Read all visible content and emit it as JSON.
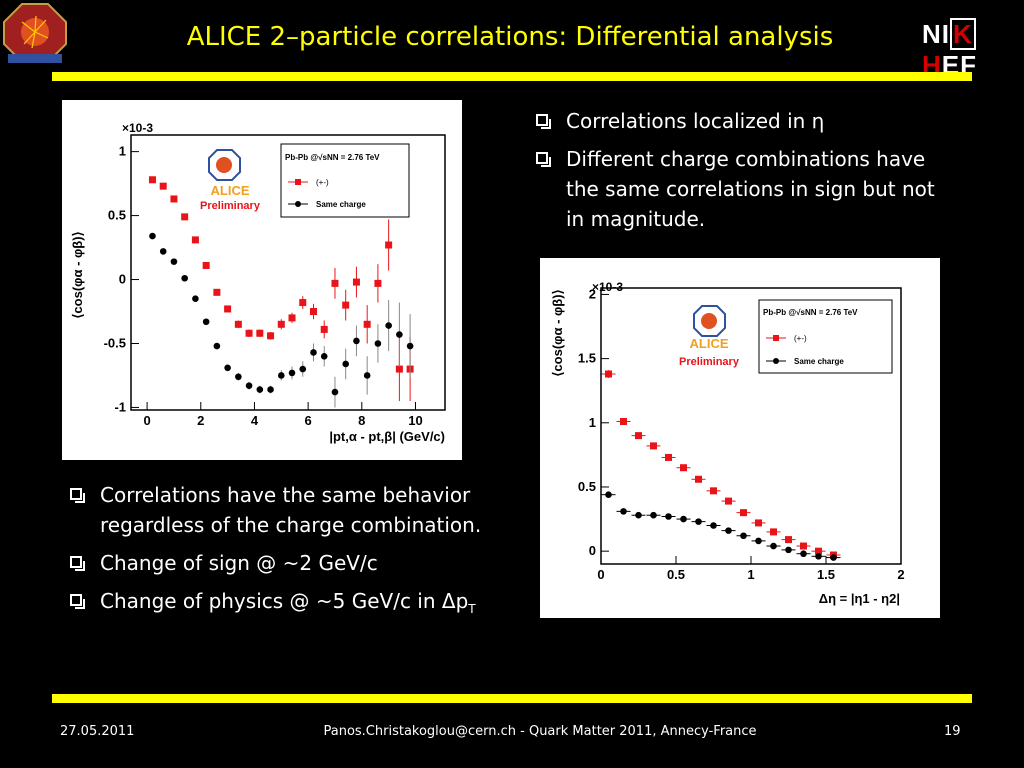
{
  "slide": {
    "title": "ALICE 2–particle correlations: Differential analysis",
    "logo_right": {
      "p1": "NI",
      "p2": "K",
      "p3": "H",
      "p4": "EF"
    }
  },
  "bullets_right": [
    "Correlations localized in η",
    "Different charge combinations have the same correlations in sign but not in magnitude."
  ],
  "bullets_left": [
    "Correlations have the same behavior regardless of the charge combination.",
    "Change of sign @ ~2 GeV/c"
  ],
  "bullet_last": {
    "text": "Change of physics @ ~5 GeV/c in Δp",
    "sub": "T"
  },
  "footer": {
    "date": "27.05.2011",
    "center": "Panos.Christakoglou@cern.ch - Quark Matter 2011, Annecy-France",
    "page": "19"
  },
  "chart_data": [
    {
      "type": "scatter",
      "ylabel": "⟨cos(φα - φβ)⟩",
      "xlabel": "|pt,α - pt,β| (GeV/c)",
      "exponent": "×10-3",
      "xlim": [
        -0.6,
        11.1
      ],
      "ylim": [
        -1.02,
        1.13
      ],
      "xticks": [
        0,
        2,
        4,
        6,
        8,
        10
      ],
      "yticks": [
        -1,
        -0.5,
        0,
        0.5,
        1
      ],
      "ytick_labels": [
        "-1",
        "-0.5",
        "0",
        "0.5",
        "1"
      ],
      "legend": {
        "system": "Pb-Pb @√sNN = 2.76 TeV",
        "preliminary": "Preliminary",
        "alice": "ALICE",
        "placement": "top-right"
      },
      "series": [
        {
          "name": "(+-)",
          "color": "#e8141a",
          "marker": "square",
          "x": [
            0.2,
            0.6,
            1.0,
            1.4,
            1.8,
            2.2,
            2.6,
            3.0,
            3.4,
            3.8,
            4.2,
            4.6,
            5.0,
            5.4,
            5.8,
            6.2,
            6.6,
            7.0,
            7.4,
            7.8,
            8.2,
            8.6,
            9.0,
            9.4,
            9.8
          ],
          "y": [
            0.78,
            0.73,
            0.63,
            0.49,
            0.31,
            0.11,
            -0.1,
            -0.23,
            -0.35,
            -0.42,
            -0.42,
            -0.44,
            -0.35,
            -0.3,
            -0.18,
            -0.25,
            -0.39,
            -0.03,
            -0.2,
            -0.02,
            -0.35,
            -0.03,
            0.27,
            -0.7,
            -0.7
          ],
          "err": [
            0.02,
            0.02,
            0.02,
            0.02,
            0.02,
            0.02,
            0.02,
            0.02,
            0.03,
            0.03,
            0.03,
            0.03,
            0.04,
            0.04,
            0.05,
            0.06,
            0.07,
            0.12,
            0.12,
            0.12,
            0.15,
            0.15,
            0.2,
            0.25,
            0.25
          ]
        },
        {
          "name": "Same charge",
          "color": "#000000",
          "marker": "circle",
          "x": [
            0.2,
            0.6,
            1.0,
            1.4,
            1.8,
            2.2,
            2.6,
            3.0,
            3.4,
            3.8,
            4.2,
            4.6,
            5.0,
            5.4,
            5.8,
            6.2,
            6.6,
            7.0,
            7.4,
            7.8,
            8.2,
            8.6,
            9.0,
            9.4,
            9.8
          ],
          "y": [
            0.34,
            0.22,
            0.14,
            0.01,
            -0.15,
            -0.33,
            -0.52,
            -0.69,
            -0.76,
            -0.83,
            -0.86,
            -0.86,
            -0.75,
            -0.73,
            -0.7,
            -0.57,
            -0.6,
            -0.88,
            -0.66,
            -0.48,
            -0.75,
            -0.5,
            -0.36,
            -0.43,
            -0.52
          ],
          "err": [
            0.02,
            0.02,
            0.02,
            0.02,
            0.02,
            0.02,
            0.02,
            0.02,
            0.03,
            0.03,
            0.03,
            0.03,
            0.04,
            0.05,
            0.06,
            0.07,
            0.08,
            0.12,
            0.12,
            0.12,
            0.15,
            0.15,
            0.2,
            0.25,
            0.25
          ]
        }
      ]
    },
    {
      "type": "scatter",
      "ylabel": "⟨cos(φα - φβ)⟩",
      "xlabel": "Δη = |η1 - η2|",
      "exponent": "×10-3",
      "xlim": [
        0,
        2.0
      ],
      "ylim": [
        -0.1,
        2.05
      ],
      "xticks": [
        0,
        0.5,
        1,
        1.5,
        2
      ],
      "xtick_labels": [
        "0",
        "0.5",
        "1",
        "1.5",
        "2"
      ],
      "yticks": [
        0,
        0.5,
        1,
        1.5,
        2
      ],
      "ytick_labels": [
        "0",
        "0.5",
        "1",
        "1.5",
        "2"
      ],
      "legend": {
        "system": "Pb-Pb @√sNN = 2.76 TeV",
        "preliminary": "Preliminary",
        "alice": "ALICE",
        "placement": "top-right"
      },
      "series": [
        {
          "name": "(+-)",
          "color": "#e8141a",
          "marker": "square",
          "x": [
            0.05,
            0.15,
            0.25,
            0.35,
            0.45,
            0.55,
            0.65,
            0.75,
            0.85,
            0.95,
            1.05,
            1.15,
            1.25,
            1.35,
            1.45,
            1.55
          ],
          "y": [
            1.38,
            1.01,
            0.9,
            0.82,
            0.73,
            0.65,
            0.56,
            0.47,
            0.39,
            0.3,
            0.22,
            0.15,
            0.09,
            0.04,
            0.0,
            -0.03
          ],
          "err": [
            0.03,
            0.02,
            0.02,
            0.02,
            0.02,
            0.02,
            0.02,
            0.02,
            0.02,
            0.02,
            0.02,
            0.02,
            0.02,
            0.02,
            0.02,
            0.02
          ]
        },
        {
          "name": "Same charge",
          "color": "#000000",
          "marker": "circle",
          "x": [
            0.05,
            0.15,
            0.25,
            0.35,
            0.45,
            0.55,
            0.65,
            0.75,
            0.85,
            0.95,
            1.05,
            1.15,
            1.25,
            1.35,
            1.45,
            1.55
          ],
          "y": [
            0.44,
            0.31,
            0.28,
            0.28,
            0.27,
            0.25,
            0.23,
            0.2,
            0.16,
            0.12,
            0.08,
            0.04,
            0.01,
            -0.02,
            -0.04,
            -0.05
          ],
          "err": [
            0.02,
            0.01,
            0.01,
            0.01,
            0.01,
            0.01,
            0.01,
            0.01,
            0.01,
            0.01,
            0.01,
            0.01,
            0.01,
            0.01,
            0.01,
            0.01
          ]
        }
      ]
    }
  ]
}
